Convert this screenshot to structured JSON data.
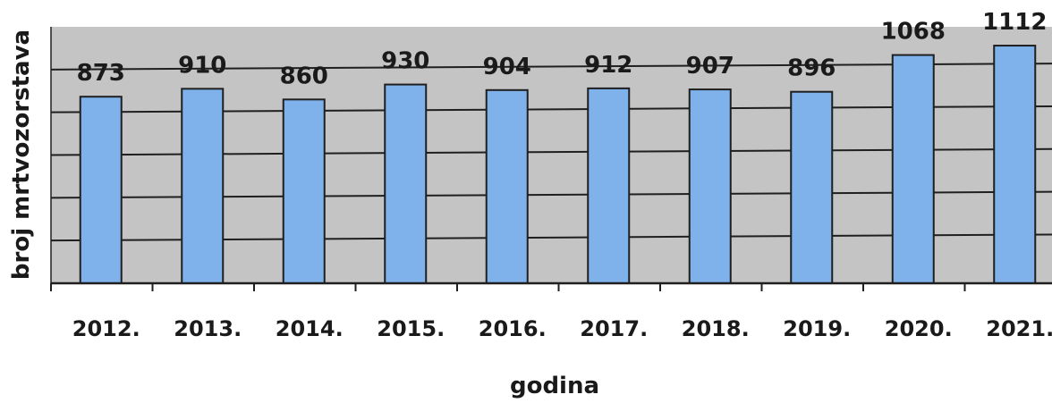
{
  "chart_data": {
    "type": "bar",
    "title": "",
    "xlabel": "godina",
    "ylabel": "broj mrtvozorstava",
    "categories": [
      "2012.",
      "2013.",
      "2014.",
      "2015.",
      "2016.",
      "2017.",
      "2018.",
      "2019.",
      "2020.",
      "2021."
    ],
    "values": [
      873,
      910,
      860,
      930,
      904,
      912,
      907,
      896,
      1068,
      1112
    ],
    "data_labels": [
      "873",
      "910",
      "860",
      "930",
      "904",
      "912",
      "907",
      "896",
      "1068",
      "1112"
    ],
    "ylim": [
      0,
      1200
    ],
    "grid": true,
    "legend": "none",
    "colors": {
      "bar_fill": "#7fb2ea",
      "bar_stroke": "#1f1f1f",
      "plot_background": "#c4c4c4",
      "gridline": "#1f1f1f"
    }
  }
}
